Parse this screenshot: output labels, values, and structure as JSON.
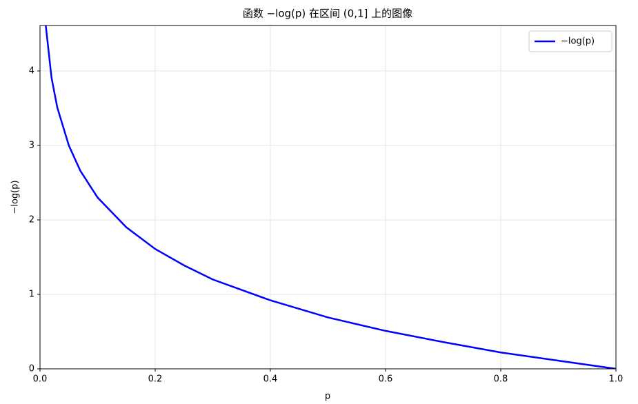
{
  "chart_data": {
    "type": "line",
    "title": "函数 −log(p) 在区间 (0,1] 上的图像",
    "x_label": "p",
    "y_label": "−log(p)",
    "x": [
      0.01,
      0.02,
      0.03,
      0.05,
      0.07,
      0.1,
      0.15,
      0.2,
      0.25,
      0.3,
      0.4,
      0.5,
      0.6,
      0.7,
      0.8,
      0.9,
      1.0
    ],
    "series": [
      {
        "name": "−log(p)",
        "color": "#0000ff",
        "values": [
          4.61,
          3.91,
          3.51,
          3.0,
          2.66,
          2.3,
          1.9,
          1.61,
          1.39,
          1.2,
          0.92,
          0.69,
          0.51,
          0.36,
          0.22,
          0.11,
          0
        ]
      }
    ],
    "xlim": [
      0,
      1
    ],
    "ylim": [
      0,
      4.61
    ],
    "xticks": [
      {
        "value": 0,
        "label": "0.0"
      },
      0.2,
      0.4,
      0.6,
      0.8,
      {
        "value": 1,
        "label": "1.0"
      }
    ],
    "yticks": [
      0,
      1,
      2,
      3,
      4
    ],
    "grid": true,
    "legend": "upper-right"
  }
}
